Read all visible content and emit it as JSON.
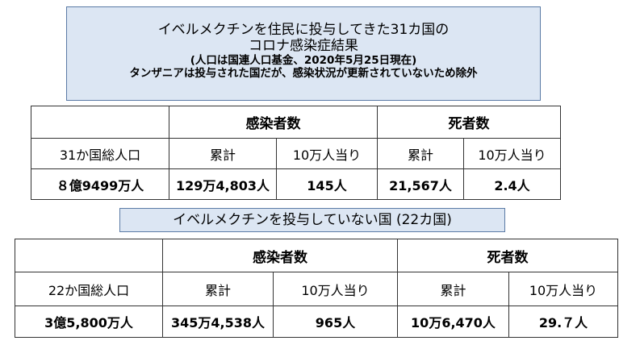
{
  "title_box": {
    "line1": "イベルメクチンを住民に投与してきた31カ国の",
    "line2": "コロナ感染症結果",
    "line3": "(人口は国連人口基金、2020年5月25日現在)",
    "line4": "タンザニアは投与された国だが、感染状況が更新されていないため除外"
  },
  "table1": {
    "group_infected": "感染者数",
    "group_deaths": "死者数",
    "population_label": "31か国総人口",
    "cumulative": "累計",
    "per100k": "10万人当り",
    "population": "８億9499万人",
    "infected_total": "129万4,803人",
    "infected_per100k": "145人",
    "deaths_total": "21,567人",
    "deaths_per100k": "2.4人"
  },
  "subtitle": "イベルメクチンを投与していない国 (22カ国)",
  "table2": {
    "group_infected": "感染者数",
    "group_deaths": "死者数",
    "population_label": "22か国総人口",
    "cumulative": "累計",
    "per100k": "10万人当り",
    "population": "3億5,800万人",
    "infected_total": "345万4,538人",
    "infected_per100k": "965人",
    "deaths_total": "10万6,470人",
    "deaths_per100k": "29.７人"
  }
}
